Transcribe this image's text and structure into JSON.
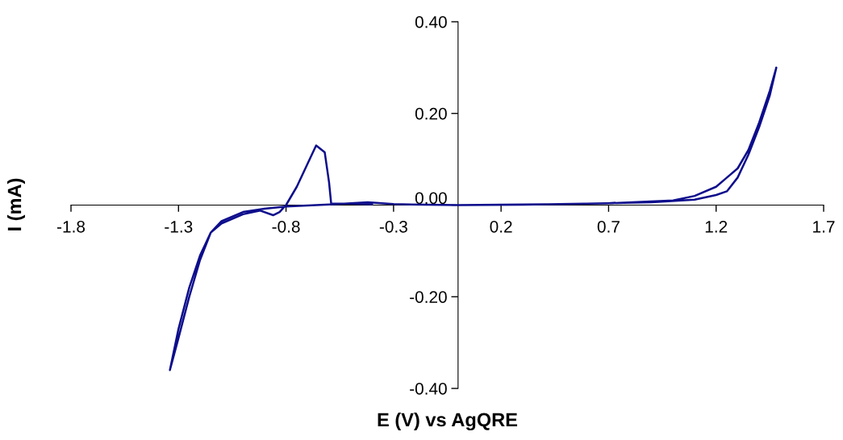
{
  "chart_data": {
    "type": "line",
    "xlabel": "E (V) vs AgQRE",
    "ylabel": "I (mA)",
    "xlim": [
      -1.8,
      1.7
    ],
    "xticks": [
      {
        "value": -1.8,
        "label": "-1.8"
      },
      {
        "value": -1.3,
        "label": "-1.3"
      },
      {
        "value": -0.8,
        "label": "-0.8"
      },
      {
        "value": -0.3,
        "label": "-0.3"
      },
      {
        "value": 0.2,
        "label": "0.2"
      },
      {
        "value": 0.7,
        "label": "0.7"
      },
      {
        "value": 1.2,
        "label": "1.2"
      },
      {
        "value": 1.7,
        "label": "1.7"
      }
    ],
    "ylim": [
      -0.4,
      0.4
    ],
    "yticks": [
      {
        "value": -0.4,
        "label": "-0.40"
      },
      {
        "value": -0.2,
        "label": "-0.20"
      },
      {
        "value": 0,
        "label": "0.00"
      },
      {
        "value": 0.2,
        "label": "0.20"
      },
      {
        "value": 0.4,
        "label": "0.40"
      }
    ],
    "grid": false,
    "legend": false,
    "marker": "none",
    "line_style": "solid",
    "series": [
      {
        "color": "#0d0d8c",
        "x": [
          0,
          0.5,
          0.9,
          1.1,
          1.2,
          1.25,
          1.3,
          1.35,
          1.4,
          1.45,
          1.48,
          1.45,
          1.4,
          1.35,
          1.3,
          1.25,
          1.2,
          1.1,
          1.0,
          0.7,
          0.3,
          0,
          -0.3,
          -0.42,
          -0.5,
          -0.56,
          -0.8,
          -0.9,
          -1.0,
          -1.1,
          -1.15,
          -1.2,
          -1.25,
          -1.3,
          -1.34,
          -1.3,
          -1.25,
          -1.2,
          -1.15,
          -1.1,
          -1.0,
          -0.92,
          -0.86,
          -0.83,
          -0.8,
          -0.75,
          -0.7,
          -0.66,
          -0.62,
          -0.6,
          -0.59,
          -0.5,
          -0.4
        ],
        "values": [
          0,
          0.002,
          0.006,
          0.012,
          0.022,
          0.03,
          0.06,
          0.11,
          0.17,
          0.24,
          0.3,
          0.25,
          0.18,
          0.12,
          0.08,
          0.06,
          0.04,
          0.02,
          0.01,
          0.004,
          0.001,
          0,
          0.002,
          0.006,
          0.004,
          0.002,
          -0.003,
          -0.008,
          -0.015,
          -0.035,
          -0.06,
          -0.12,
          -0.2,
          -0.29,
          -0.36,
          -0.27,
          -0.18,
          -0.11,
          -0.06,
          -0.04,
          -0.02,
          -0.012,
          -0.022,
          -0.015,
          0,
          0.04,
          0.09,
          0.13,
          0.115,
          0.05,
          0.003,
          0.003,
          0.002
        ]
      }
    ]
  }
}
